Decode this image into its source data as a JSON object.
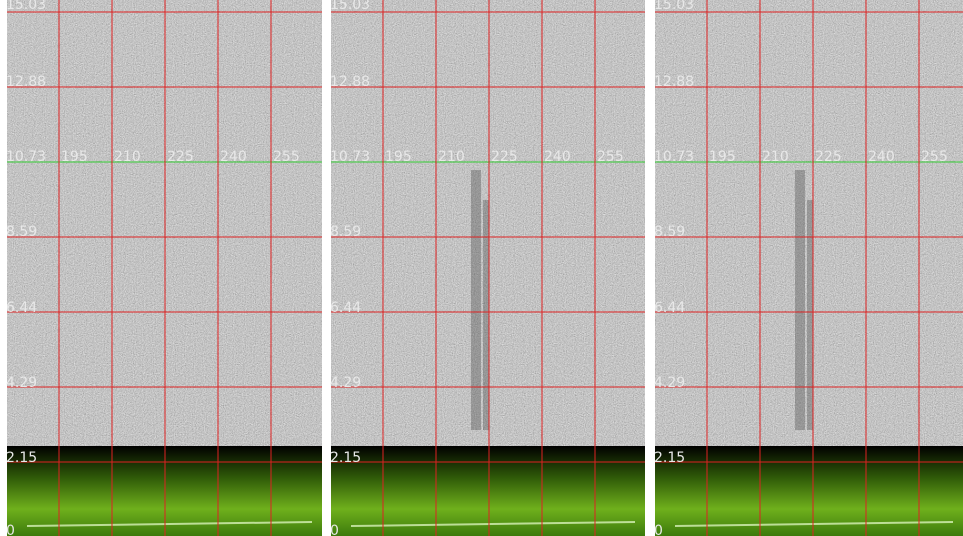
{
  "grid": {
    "y_labels": [
      "15.03",
      "12.88",
      "10.73",
      "8.59",
      "6.44",
      "4.29",
      "2.15",
      "0"
    ],
    "x_labels": [
      "195",
      "210",
      "225",
      "240",
      "255"
    ]
  }
}
